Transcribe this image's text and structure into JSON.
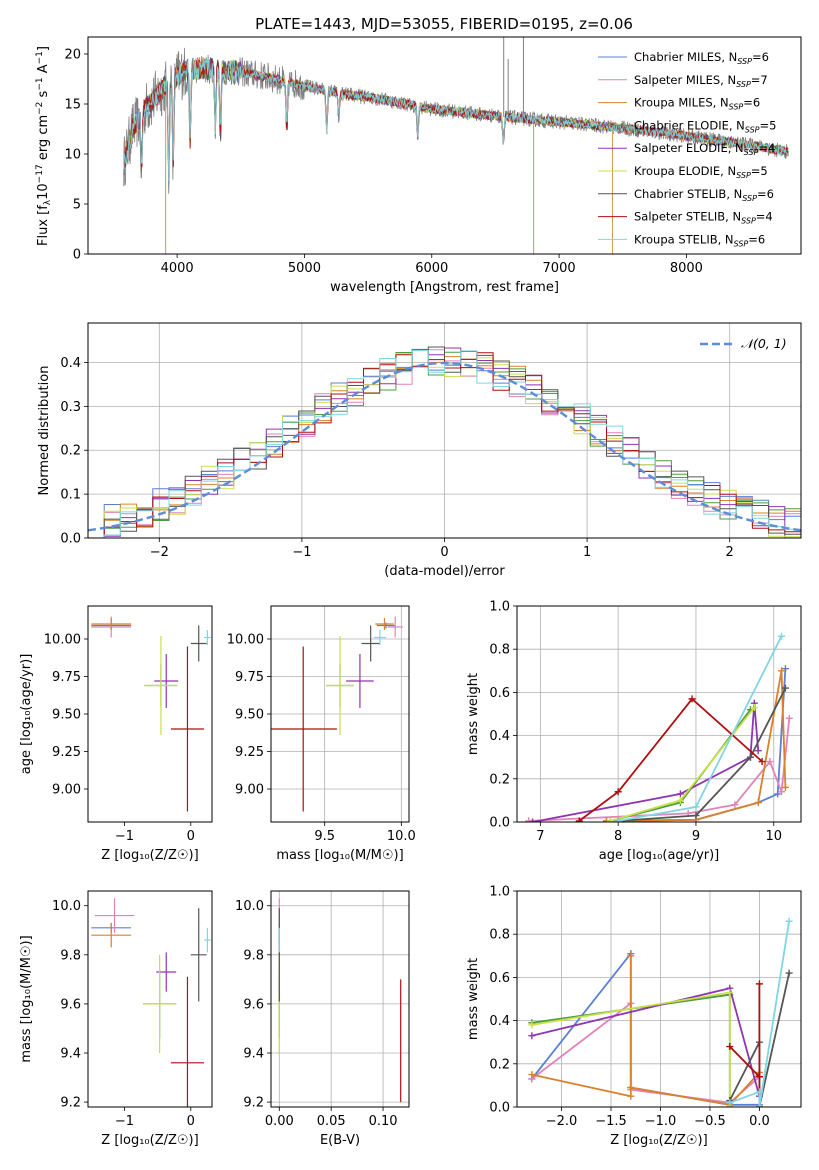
{
  "figure": {
    "title": "PLATE=1443, MJD=53055, FIBERID=0195, z=0.06"
  },
  "colors": {
    "Chabrier MILES": "#5b7fd6",
    "Salpeter MILES": "#e183b8",
    "Kroupa MILES": "#d9822b",
    "Chabrier ELODIE": "#4f9b3f",
    "Salpeter ELODIE": "#8e35b2",
    "Kroupa ELODIE": "#c8e04a",
    "Chabrier STELIB": "#555555",
    "Salpeter STELIB": "#b00f0f",
    "Kroupa STELIB": "#7fd6e0",
    "data": "#808080",
    "normal": "#5b8dd9"
  },
  "chart_data": [
    {
      "type": "line",
      "name": "spectrum",
      "xlabel": "wavelength [Angstrom, rest frame]",
      "ylabel_parts": [
        "Flux [f",
        "λ",
        "10",
        "−17",
        " erg cm",
        "−2",
        " s",
        "−1",
        " A",
        "−1",
        "]"
      ],
      "xlim": [
        3300,
        8900
      ],
      "ylim": [
        0,
        21.7
      ],
      "xticks": [
        4000,
        5000,
        6000,
        7000,
        8000
      ],
      "yticks": [
        0,
        5,
        10,
        15,
        20
      ],
      "grid": false,
      "legend_placement": "top-right",
      "series": [
        {
          "name": "Chabrier MILES",
          "nssp": "6"
        },
        {
          "name": "Salpeter MILES",
          "nssp": "7"
        },
        {
          "name": "Kroupa MILES",
          "nssp": "6"
        },
        {
          "name": "Chabrier ELODIE",
          "nssp": "5"
        },
        {
          "name": "Salpeter ELODIE",
          "nssp": "4"
        },
        {
          "name": "Kroupa ELODIE",
          "nssp": "5"
        },
        {
          "name": "Chabrier STELIB",
          "nssp": "6"
        },
        {
          "name": "Salpeter STELIB",
          "nssp": "4"
        },
        {
          "name": "Kroupa STELIB",
          "nssp": "6"
        }
      ],
      "continuum": [
        [
          3580,
          9.0
        ],
        [
          3650,
          12.5
        ],
        [
          3750,
          14.5
        ],
        [
          3850,
          16.0
        ],
        [
          3950,
          17.5
        ],
        [
          4100,
          18.5
        ],
        [
          4300,
          18.5
        ],
        [
          4500,
          18.2
        ],
        [
          4700,
          17.7
        ],
        [
          5000,
          16.8
        ],
        [
          5300,
          16.0
        ],
        [
          5600,
          15.5
        ],
        [
          6000,
          14.5
        ],
        [
          6500,
          13.8
        ],
        [
          7000,
          13.2
        ],
        [
          7500,
          12.6
        ],
        [
          8000,
          11.8
        ],
        [
          8500,
          10.9
        ],
        [
          8800,
          10.2
        ]
      ],
      "absorption_features": [
        [
          3720,
          5.5
        ],
        [
          3934,
          9.0
        ],
        [
          3969,
          8.0
        ],
        [
          4102,
          7.0
        ],
        [
          4300,
          6.0
        ],
        [
          4340,
          6.5
        ],
        [
          4861,
          5.0
        ],
        [
          5175,
          4.0
        ],
        [
          5270,
          2.5
        ],
        [
          5890,
          3.0
        ],
        [
          6563,
          2.5
        ]
      ],
      "spikes": [
        [
          3910,
          0.0
        ],
        [
          6800,
          0.0
        ],
        [
          7420,
          0.0
        ],
        [
          6565,
          21.7
        ],
        [
          6720,
          21.7
        ],
        [
          6600,
          19.5
        ]
      ]
    },
    {
      "type": "step",
      "name": "residual-histogram",
      "xlabel": "(data-model)/error",
      "ylabel": "Normed distribution",
      "xlim": [
        -2.5,
        2.5
      ],
      "ylim": [
        0,
        0.49
      ],
      "xticks": [
        -2,
        -1,
        0,
        1,
        2
      ],
      "yticks": [
        0.0,
        0.1,
        0.2,
        0.3,
        0.4
      ],
      "grid": true,
      "legend_placement": "top-right",
      "legend": "𝒩(0, 1)",
      "bins": 44
    },
    {
      "type": "scatter",
      "name": "age-vs-Z",
      "xlabel": "Z [log₁₀(Z/Z☉)]",
      "ylabel": "age  [log₁₀(age/yr)]",
      "xlim": [
        -1.55,
        0.32
      ],
      "ylim": [
        8.78,
        10.22
      ],
      "xticks": [
        -1,
        0
      ],
      "yticks": [
        9.0,
        9.25,
        9.5,
        9.75,
        10.0
      ],
      "grid": false,
      "points": [
        {
          "series": "Chabrier MILES",
          "x": -1.2,
          "y": 10.09,
          "xerr": 0.3,
          "yerr": 0.02
        },
        {
          "series": "Salpeter MILES",
          "x": -1.2,
          "y": 10.08,
          "xerr": 0.3,
          "yerr": 0.07
        },
        {
          "series": "Kroupa MILES",
          "x": -1.2,
          "y": 10.1,
          "xerr": 0.3,
          "yerr": 0.04
        },
        {
          "series": "Chabrier ELODIE",
          "x": -0.45,
          "y": 9.69,
          "xerr": 0.25,
          "yerr": 0.14
        },
        {
          "series": "Salpeter ELODIE",
          "x": -0.37,
          "y": 9.72,
          "xerr": 0.18,
          "yerr": 0.18
        },
        {
          "series": "Kroupa ELODIE",
          "x": -0.45,
          "y": 9.69,
          "xerr": 0.25,
          "yerr": 0.33
        },
        {
          "series": "Chabrier STELIB",
          "x": 0.12,
          "y": 9.97,
          "xerr": 0.12,
          "yerr": 0.12
        },
        {
          "series": "Salpeter STELIB",
          "x": -0.05,
          "y": 9.4,
          "xerr": 0.25,
          "yerr": 0.55
        },
        {
          "series": "Kroupa STELIB",
          "x": 0.25,
          "y": 10.01,
          "xerr": 0.05,
          "yerr": 0.05
        }
      ]
    },
    {
      "type": "scatter",
      "name": "age-vs-mass",
      "xlabel": "mass [log₁₀(M/M☉)]",
      "ylabel": "",
      "xlim": [
        9.15,
        10.05
      ],
      "ylim": [
        8.78,
        10.22
      ],
      "xticks": [
        9.5,
        10.0
      ],
      "yticks": [
        9.0,
        9.25,
        9.5,
        9.75,
        10.0
      ],
      "grid": true,
      "points": [
        {
          "series": "Chabrier MILES",
          "x": 9.9,
          "y": 10.09,
          "xerr": 0.06,
          "yerr": 0.02
        },
        {
          "series": "Salpeter MILES",
          "x": 9.96,
          "y": 10.08,
          "xerr": 0.05,
          "yerr": 0.07
        },
        {
          "series": "Kroupa MILES",
          "x": 9.89,
          "y": 10.1,
          "xerr": 0.06,
          "yerr": 0.04
        },
        {
          "series": "Chabrier ELODIE",
          "x": 9.6,
          "y": 9.69,
          "xerr": 0.09,
          "yerr": 0.14
        },
        {
          "series": "Salpeter ELODIE",
          "x": 9.73,
          "y": 9.72,
          "xerr": 0.09,
          "yerr": 0.18
        },
        {
          "series": "Kroupa ELODIE",
          "x": 9.6,
          "y": 9.69,
          "xerr": 0.09,
          "yerr": 0.33
        },
        {
          "series": "Chabrier STELIB",
          "x": 9.8,
          "y": 9.97,
          "xerr": 0.06,
          "yerr": 0.12
        },
        {
          "series": "Salpeter STELIB",
          "x": 9.36,
          "y": 9.4,
          "xerr": 0.22,
          "yerr": 0.55
        },
        {
          "series": "Kroupa STELIB",
          "x": 9.86,
          "y": 10.01,
          "xerr": 0.04,
          "yerr": 0.05
        }
      ]
    },
    {
      "type": "line",
      "name": "mass-weight-vs-age",
      "xlabel": "age  [log₁₀(age/yr)]",
      "ylabel": "mass weight",
      "xlim": [
        6.7,
        10.35
      ],
      "ylim": [
        0,
        1.0
      ],
      "xticks": [
        7,
        8,
        9,
        10
      ],
      "yticks": [
        0.0,
        0.2,
        0.4,
        0.6,
        0.8,
        1.0
      ],
      "grid": true,
      "series": [
        {
          "name": "Chabrier MILES",
          "x": [
            7.85,
            9.0,
            9.8,
            10.05,
            10.15
          ],
          "y": [
            0.005,
            0.01,
            0.09,
            0.13,
            0.71
          ]
        },
        {
          "name": "Salpeter MILES",
          "x": [
            6.85,
            8.9,
            9.5,
            9.95,
            10.1,
            10.2
          ],
          "y": [
            0.005,
            0.04,
            0.08,
            0.28,
            0.14,
            0.48
          ]
        },
        {
          "name": "Kroupa MILES",
          "x": [
            7.85,
            9.0,
            9.8,
            10.1,
            10.15
          ],
          "y": [
            0.005,
            0.01,
            0.09,
            0.7,
            0.16
          ]
        },
        {
          "name": "Chabrier ELODIE",
          "x": [
            7.9,
            8.8,
            9.7
          ],
          "y": [
            0.005,
            0.09,
            0.52
          ]
        },
        {
          "name": "Salpeter ELODIE",
          "x": [
            6.9,
            8.8,
            9.7,
            9.75,
            9.8
          ],
          "y": [
            0.0,
            0.13,
            0.3,
            0.55,
            0.33
          ]
        },
        {
          "name": "Kroupa ELODIE",
          "x": [
            7.9,
            8.8,
            9.75
          ],
          "y": [
            0.005,
            0.1,
            0.53
          ]
        },
        {
          "name": "Chabrier STELIB",
          "x": [
            8.0,
            9.0,
            9.7,
            10.15
          ],
          "y": [
            0.005,
            0.03,
            0.3,
            0.62
          ]
        },
        {
          "name": "Salpeter STELIB",
          "x": [
            7.5,
            8.0,
            8.95,
            9.85
          ],
          "y": [
            0.005,
            0.14,
            0.57,
            0.28
          ]
        },
        {
          "name": "Kroupa STELIB",
          "x": [
            8.0,
            9.0,
            10.1
          ],
          "y": [
            0.005,
            0.07,
            0.86
          ]
        }
      ]
    },
    {
      "type": "scatter",
      "name": "mass-vs-Z",
      "xlabel": "Z [log₁₀(Z/Z☉)]",
      "ylabel": "mass [log₁₀(M/M☉)]",
      "xlim": [
        -1.55,
        0.32
      ],
      "ylim": [
        9.18,
        10.06
      ],
      "xticks": [
        -1,
        0
      ],
      "yticks": [
        9.2,
        9.4,
        9.6,
        9.8,
        10.0
      ],
      "grid": false,
      "points": [
        {
          "series": "Chabrier MILES",
          "x": -1.2,
          "y": 9.91,
          "xerr": 0.3,
          "yerr": 0.02
        },
        {
          "series": "Salpeter MILES",
          "x": -1.15,
          "y": 9.96,
          "xerr": 0.3,
          "yerr": 0.07
        },
        {
          "series": "Kroupa MILES",
          "x": -1.2,
          "y": 9.88,
          "xerr": 0.3,
          "yerr": 0.05
        },
        {
          "series": "Chabrier ELODIE",
          "x": -0.47,
          "y": 9.6,
          "xerr": 0.25,
          "yerr": 0.14
        },
        {
          "series": "Salpeter ELODIE",
          "x": -0.37,
          "y": 9.73,
          "xerr": 0.15,
          "yerr": 0.08
        },
        {
          "series": "Kroupa ELODIE",
          "x": -0.47,
          "y": 9.6,
          "xerr": 0.25,
          "yerr": 0.2
        },
        {
          "series": "Chabrier STELIB",
          "x": 0.12,
          "y": 9.8,
          "xerr": 0.12,
          "yerr": 0.19
        },
        {
          "series": "Salpeter STELIB",
          "x": -0.05,
          "y": 9.36,
          "xerr": 0.25,
          "yerr": 0.35
        },
        {
          "series": "Kroupa STELIB",
          "x": 0.25,
          "y": 9.86,
          "xerr": 0.05,
          "yerr": 0.05
        }
      ]
    },
    {
      "type": "scatter",
      "name": "mass-vs-EBV",
      "xlabel": "E(B-V)",
      "ylabel": "",
      "xlim": [
        -0.008,
        0.125
      ],
      "ylim": [
        9.18,
        10.06
      ],
      "xticks": [
        0.0,
        0.05,
        0.1
      ],
      "yticks": [
        9.2,
        9.4,
        9.6,
        9.8,
        10.0
      ],
      "grid": true,
      "points": [
        {
          "series": "Chabrier MILES",
          "x": 0.0,
          "y": 9.91,
          "xerr": 0.0,
          "yerr": 0.02
        },
        {
          "series": "Salpeter MILES",
          "x": 0.0,
          "y": 9.96,
          "xerr": 0.0,
          "yerr": 0.07
        },
        {
          "series": "Kroupa MILES",
          "x": 0.0,
          "y": 9.88,
          "xerr": 0.0,
          "yerr": 0.05
        },
        {
          "series": "Chabrier ELODIE",
          "x": 0.0,
          "y": 9.6,
          "xerr": 0.0,
          "yerr": 0.14
        },
        {
          "series": "Salpeter ELODIE",
          "x": 0.0,
          "y": 9.73,
          "xerr": 0.0,
          "yerr": 0.08
        },
        {
          "series": "Kroupa ELODIE",
          "x": 0.0,
          "y": 9.6,
          "xerr": 0.0,
          "yerr": 0.2
        },
        {
          "series": "Chabrier STELIB",
          "x": 0.0,
          "y": 9.8,
          "xerr": 0.0,
          "yerr": 0.19
        },
        {
          "series": "Salpeter STELIB",
          "x": 0.117,
          "y": 9.45,
          "xerr": 0.0,
          "yerr": 0.25
        },
        {
          "series": "Kroupa STELIB",
          "x": 0.0,
          "y": 9.86,
          "xerr": 0.0,
          "yerr": 0.05
        }
      ]
    },
    {
      "type": "line",
      "name": "mass-weight-vs-Z",
      "xlabel": "Z [log₁₀(Z/Z☉)]",
      "ylabel": "mass weight",
      "xlim": [
        -2.45,
        0.42
      ],
      "ylim": [
        0,
        1.0
      ],
      "xticks": [
        -2.0,
        -1.5,
        -1.0,
        -0.5,
        0.0
      ],
      "yticks": [
        0.0,
        0.2,
        0.4,
        0.6,
        0.8,
        1.0
      ],
      "grid": true,
      "series": [
        {
          "name": "Chabrier MILES",
          "x": [
            -2.3,
            -1.3,
            -1.3,
            -0.3,
            0.0
          ],
          "y": [
            0.13,
            0.71,
            0.09,
            0.01,
            0.01
          ]
        },
        {
          "name": "Salpeter MILES",
          "x": [
            -2.3,
            -1.3,
            -1.3,
            -0.3,
            0.0
          ],
          "y": [
            0.13,
            0.48,
            0.08,
            0.02,
            0.14
          ]
        },
        {
          "name": "Kroupa MILES",
          "x": [
            -2.3,
            -1.3,
            -1.3,
            -1.3,
            -0.3,
            0.0
          ],
          "y": [
            0.15,
            0.05,
            0.7,
            0.09,
            0.01,
            0.16
          ]
        },
        {
          "name": "Chabrier ELODIE",
          "x": [
            -2.3,
            -0.3,
            -0.3
          ],
          "y": [
            0.39,
            0.52,
            0.0
          ]
        },
        {
          "name": "Salpeter ELODIE",
          "x": [
            -2.3,
            -0.3,
            0.0
          ],
          "y": [
            0.33,
            0.55,
            0.05
          ]
        },
        {
          "name": "Kroupa ELODIE",
          "x": [
            -2.3,
            -0.3,
            -0.3
          ],
          "y": [
            0.38,
            0.53,
            0.0
          ]
        },
        {
          "name": "Chabrier STELIB",
          "x": [
            -0.3,
            0.0,
            0.0,
            0.3
          ],
          "y": [
            0.03,
            0.3,
            0.0,
            0.62
          ]
        },
        {
          "name": "Salpeter STELIB",
          "x": [
            -0.3,
            0.0,
            0.0,
            0.0
          ],
          "y": [
            0.28,
            0.14,
            0.57,
            0.0
          ]
        },
        {
          "name": "Kroupa STELIB",
          "x": [
            -0.3,
            0.0,
            0.0,
            0.3
          ],
          "y": [
            0.02,
            0.07,
            0.0,
            0.86
          ]
        }
      ]
    }
  ]
}
